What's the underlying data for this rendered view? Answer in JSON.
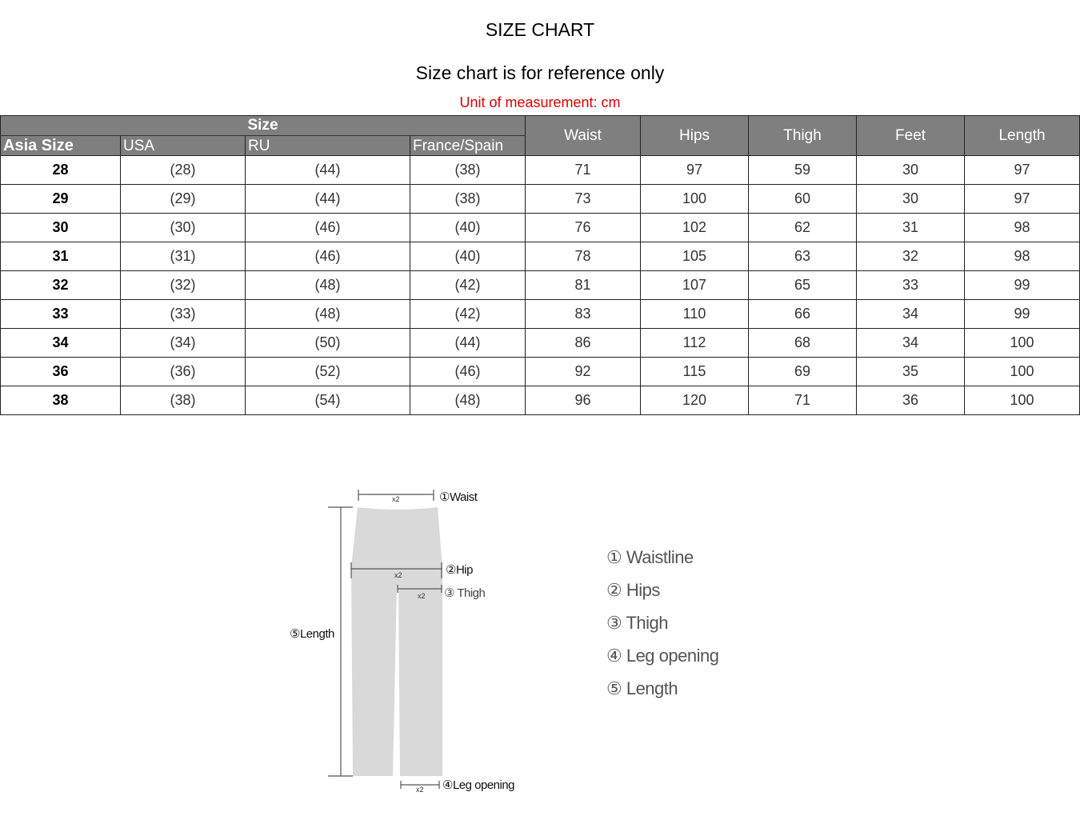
{
  "title": "SIZE CHART",
  "subtitle": "Size chart is for reference only",
  "unit_note": "Unit of measurement: cm",
  "table": {
    "size_group": "Size",
    "headers": [
      "Asia Size",
      "USA",
      "RU",
      "France/Spain",
      "Waist",
      "Hips",
      "Thigh",
      "Feet",
      "Length"
    ],
    "rows": [
      [
        "28",
        "(28)",
        "(44)",
        "(38)",
        "71",
        "97",
        "59",
        "30",
        "97"
      ],
      [
        "29",
        "(29)",
        "(44)",
        "(38)",
        "73",
        "100",
        "60",
        "30",
        "97"
      ],
      [
        "30",
        "(30)",
        "(46)",
        "(40)",
        "76",
        "102",
        "62",
        "31",
        "98"
      ],
      [
        "31",
        "(31)",
        "(46)",
        "(40)",
        "78",
        "105",
        "63",
        "32",
        "98"
      ],
      [
        "32",
        "(32)",
        "(48)",
        "(42)",
        "81",
        "107",
        "65",
        "33",
        "99"
      ],
      [
        "33",
        "(33)",
        "(48)",
        "(42)",
        "83",
        "110",
        "66",
        "34",
        "99"
      ],
      [
        "34",
        "(34)",
        "(50)",
        "(44)",
        "86",
        "112",
        "68",
        "34",
        "100"
      ],
      [
        "36",
        "(36)",
        "(52)",
        "(46)",
        "92",
        "115",
        "69",
        "35",
        "100"
      ],
      [
        "38",
        "(38)",
        "(54)",
        "(48)",
        "96",
        "120",
        "71",
        "36",
        "100"
      ]
    ]
  },
  "diagram": {
    "waist": "①Waist",
    "hip": "②Hip",
    "thigh": "③ Thigh",
    "leg": "④Leg opening",
    "length": "⑤Length",
    "x2": "x2"
  },
  "legend": [
    "① Waistline",
    "② Hips",
    "③ Thigh",
    "④ Leg opening",
    "⑤ Length"
  ]
}
